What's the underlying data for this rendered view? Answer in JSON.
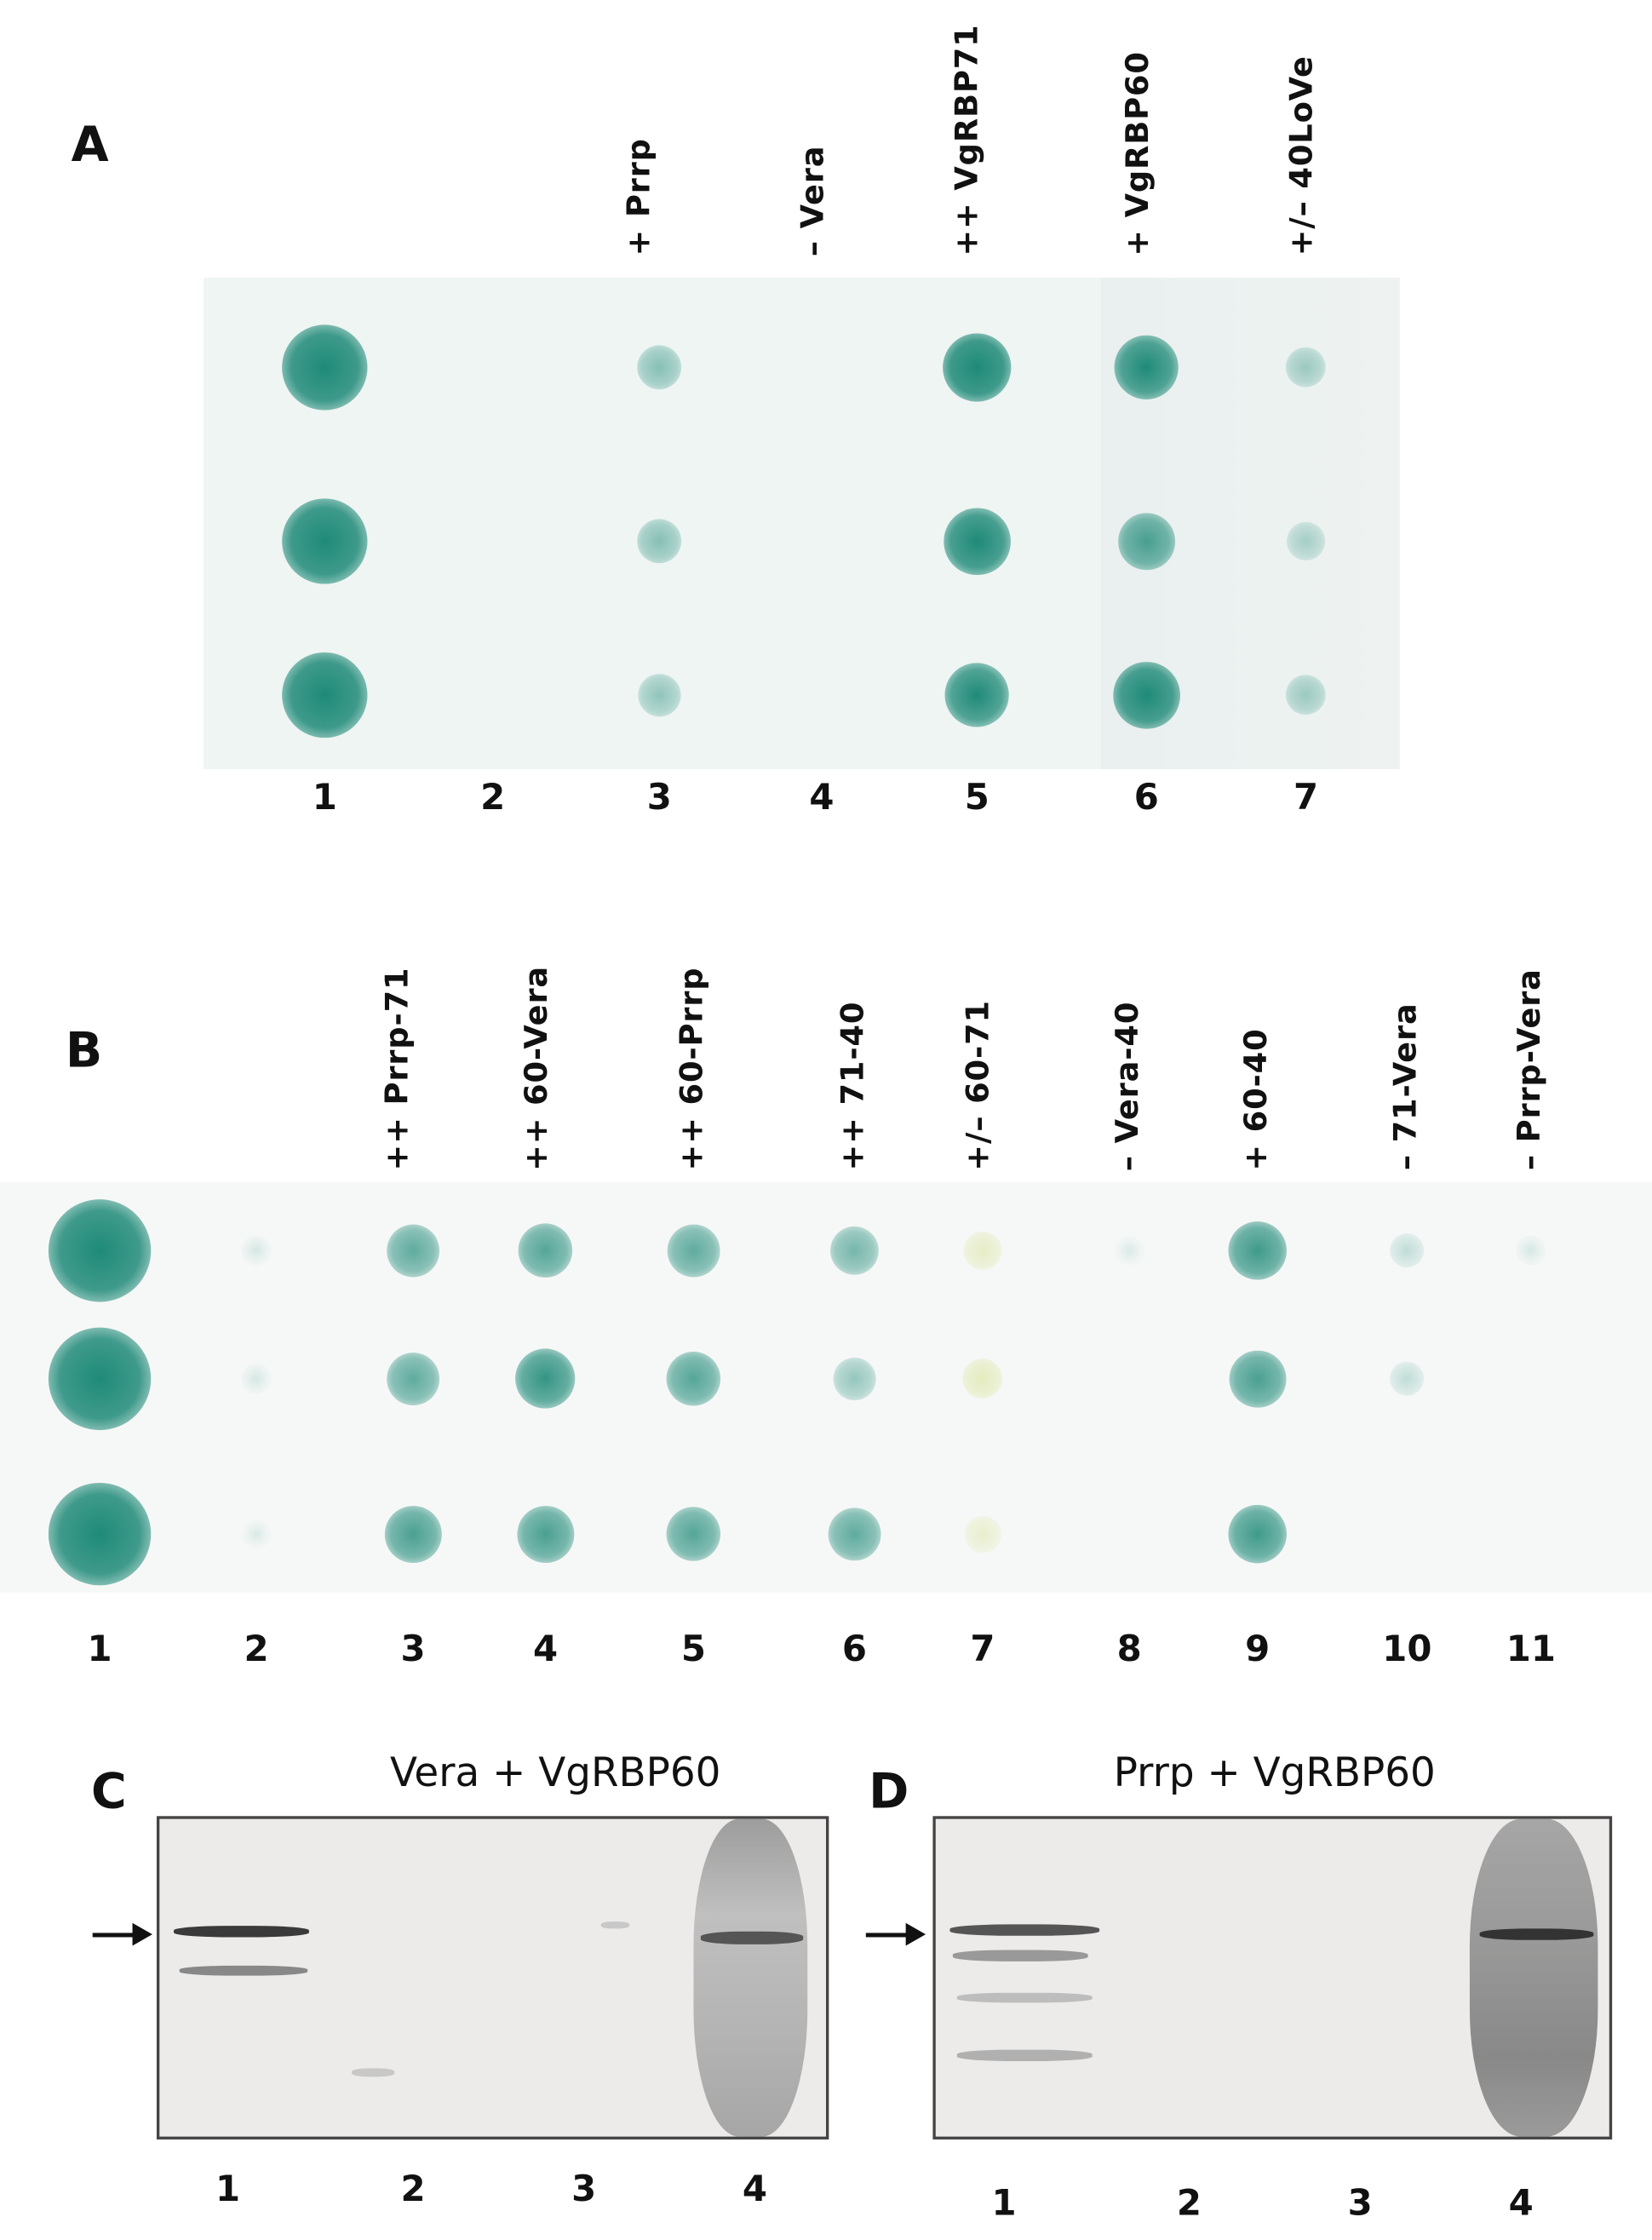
{
  "panel_a": {
    "letter": "A",
    "labels": [
      "+ Prrp",
      "– Vera",
      "++ VgRBP71",
      "+ VgRBP60",
      "+/– 40LoVe"
    ],
    "lane_numbers": [
      "1",
      "2",
      "3",
      "4",
      "5",
      "6",
      "7"
    ],
    "dot_intensity": [
      [
        1.0,
        1.0,
        1.0
      ],
      [
        0,
        0,
        0
      ],
      [
        0.4,
        0.4,
        0.35
      ],
      [
        0,
        0,
        0
      ],
      [
        1.0,
        0.95,
        0.9
      ],
      [
        0.9,
        0.7,
        0.95
      ],
      [
        0.3,
        0.25,
        0.3
      ]
    ]
  },
  "panel_b": {
    "letter": "B",
    "labels": [
      "++ Prrp-71",
      "++ 60-Vera",
      "++ 60-Prrp",
      "++ 71-40",
      "+/– 60-71",
      "– Vera-40",
      "+ 60-40",
      "– 71-Vera",
      "– Prrp-Vera"
    ],
    "lane_numbers": [
      "1",
      "2",
      "3",
      "4",
      "5",
      "6",
      "7",
      "8",
      "9",
      "10",
      "11"
    ],
    "dot_intensity": [
      [
        1.0,
        1.0,
        1.0
      ],
      [
        0.05,
        0.05,
        0.03
      ],
      [
        0.6,
        0.6,
        0.7
      ],
      [
        0.65,
        0.8,
        0.7
      ],
      [
        0.6,
        0.65,
        0.65
      ],
      [
        0.5,
        0.35,
        0.6
      ],
      [
        0.25,
        0.3,
        0.2
      ],
      [
        0.03,
        0,
        0
      ],
      [
        0.75,
        0.7,
        0.75
      ],
      [
        0.15,
        0.15,
        0
      ],
      [
        0.05,
        0,
        0
      ]
    ]
  },
  "panel_c": {
    "letter": "C",
    "title": "Vera + VgRBP60",
    "lane_numbers": [
      "1",
      "2",
      "3",
      "4"
    ]
  },
  "panel_d": {
    "letter": "D",
    "title": "Prrp + VgRBP60",
    "lane_numbers": [
      "1",
      "2",
      "3",
      "4"
    ]
  },
  "colors": {
    "dot": "#1f8a78",
    "dot_yellow": "#c9d86a",
    "blot_bg": "#eef4f2",
    "gel_bg": "#ecebea"
  }
}
